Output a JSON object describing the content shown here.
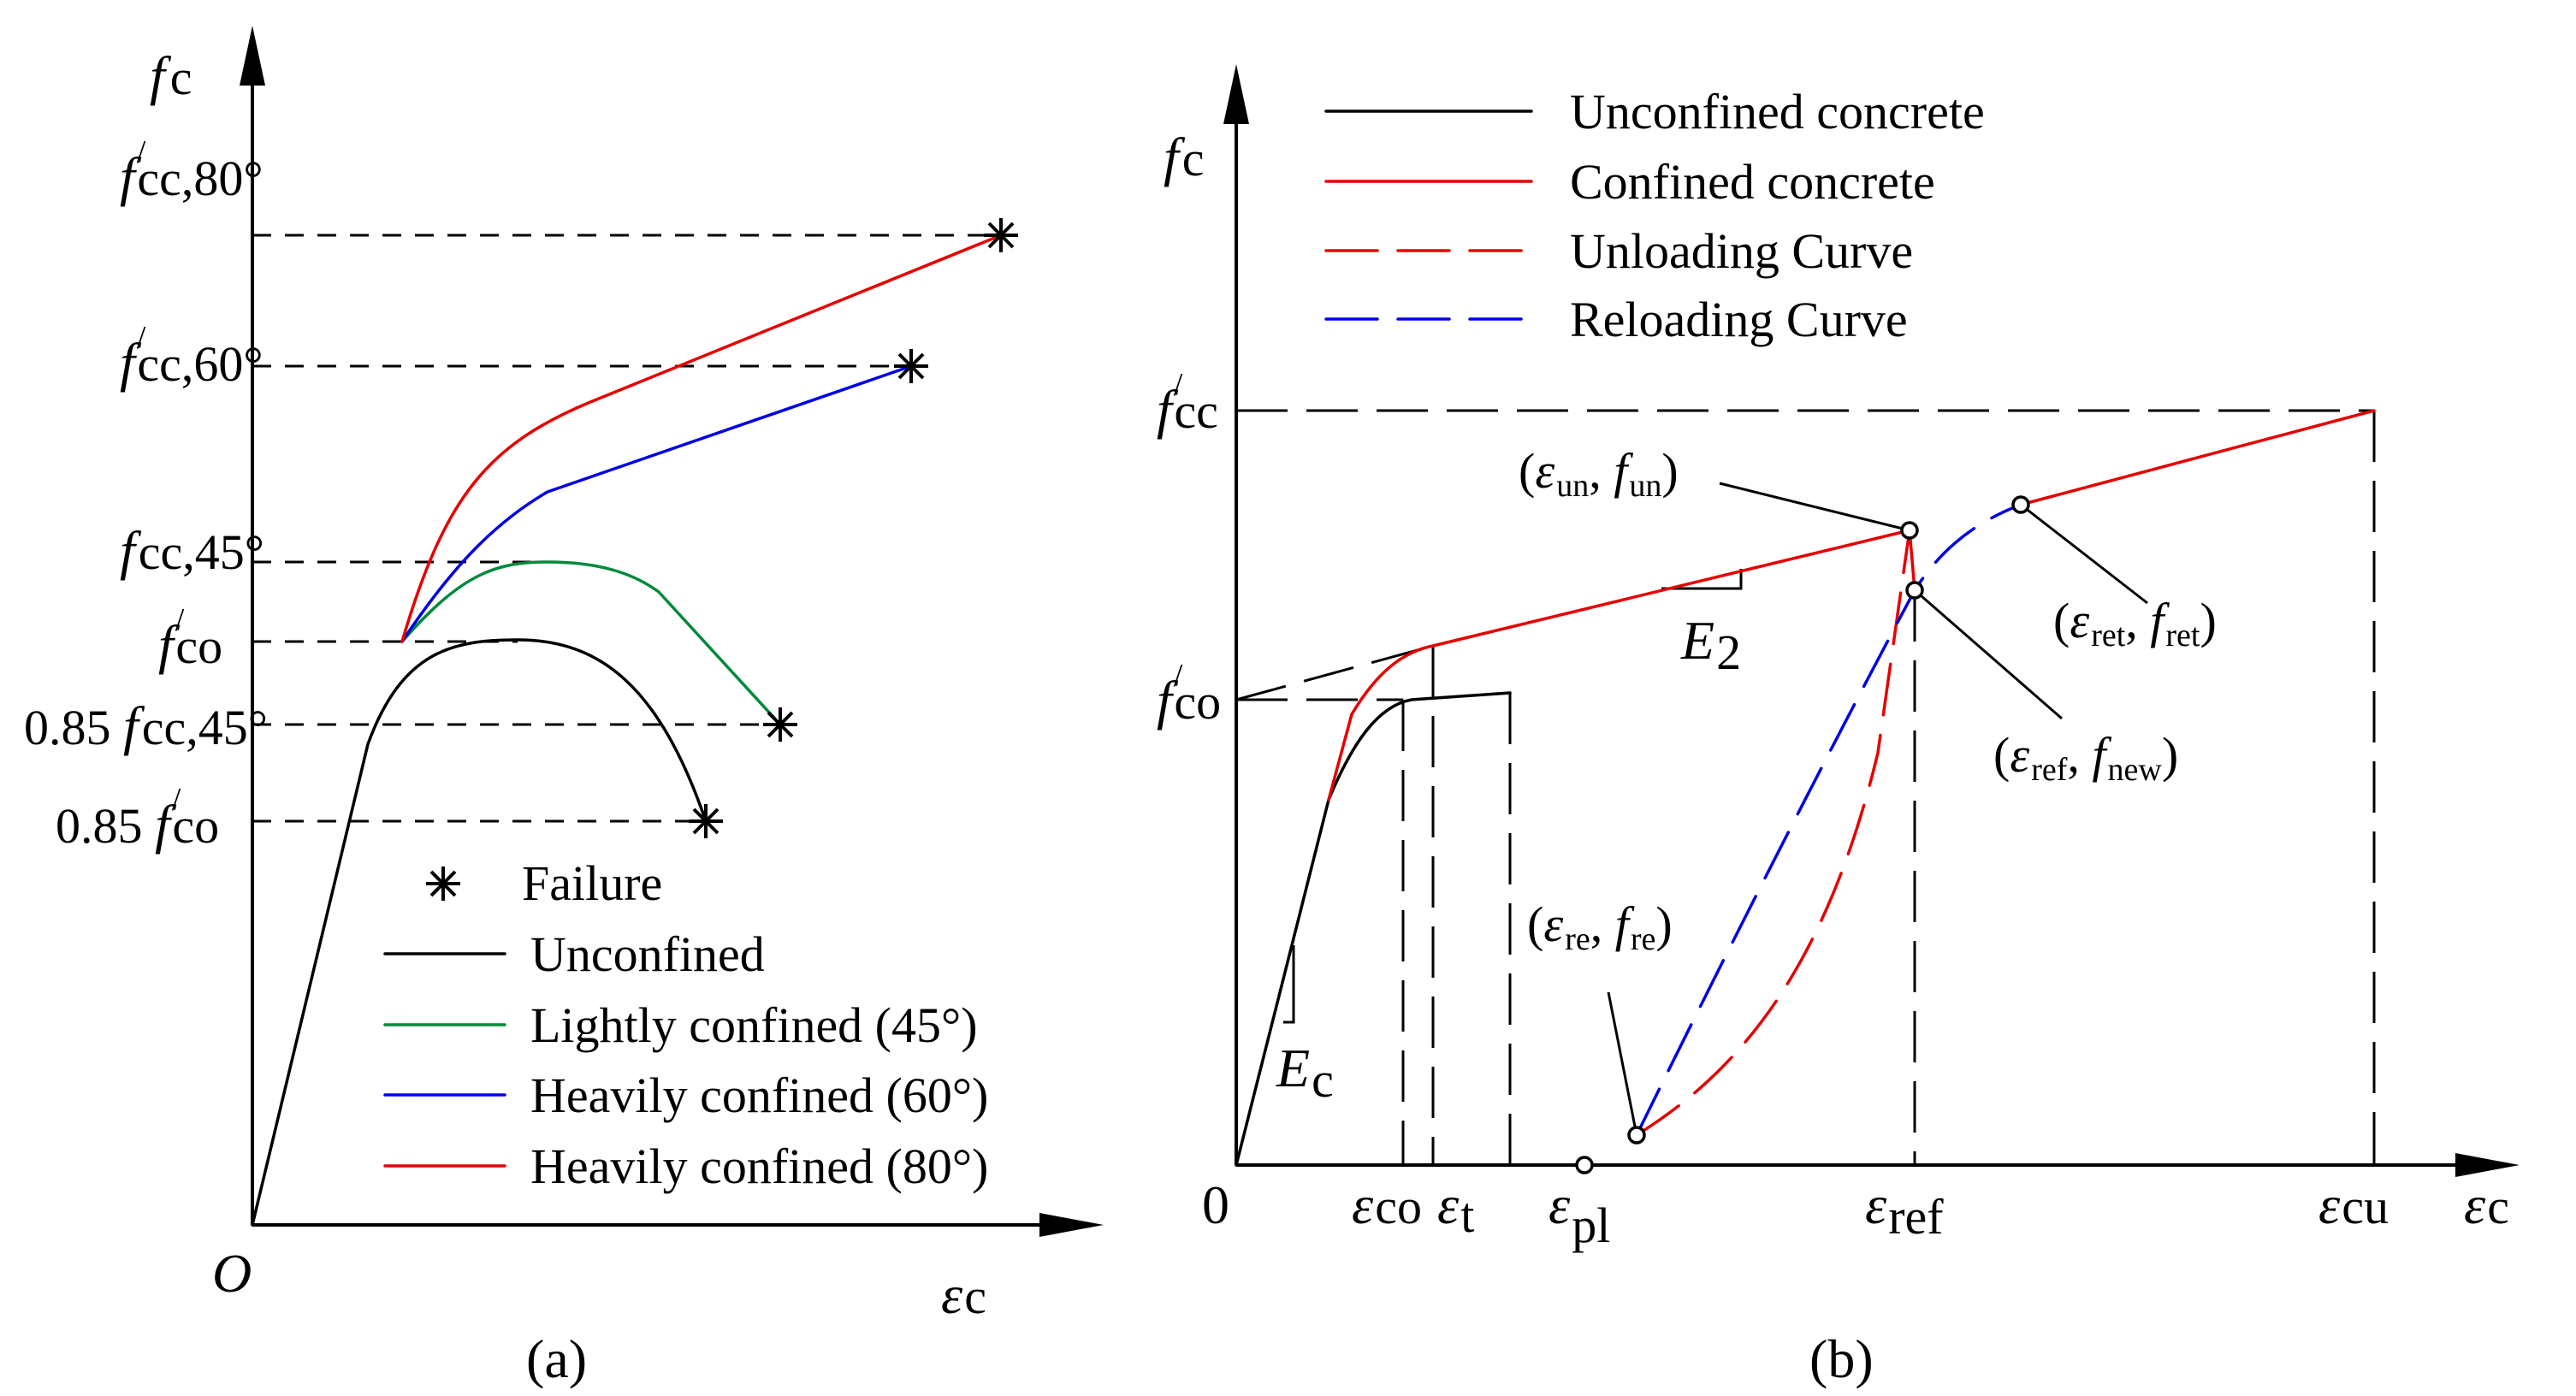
{
  "colors": {
    "unconfined": "#000000",
    "light_45": "#008a3a",
    "heavy_60": "#0000e6",
    "heavy_80": "#e60000",
    "confined": "#e60000",
    "unloading": "#e60000",
    "reloading": "#0000e6"
  },
  "panel_a": {
    "caption": "(a)",
    "origin": "O",
    "y_axis": {
      "main": "f",
      "sub": "c"
    },
    "x_axis": {
      "main": "ε",
      "sub": "c"
    },
    "ticks": [
      {
        "prefix": "",
        "main": "f",
        "prime": "/",
        "sub": "cc,80°"
      },
      {
        "prefix": "",
        "main": "f",
        "prime": "/",
        "sub": "cc,60°"
      },
      {
        "prefix": "",
        "main": "f",
        "prime": "",
        "sub": "cc,45°"
      },
      {
        "prefix": "",
        "main": "f",
        "prime": "/",
        "sub": "co"
      },
      {
        "prefix": "0.85 ",
        "main": "f",
        "prime": "",
        "sub": "cc,45°"
      },
      {
        "prefix": "0.85 ",
        "main": "f",
        "prime": "/",
        "sub": "co"
      }
    ],
    "legend": {
      "failure_icon": "asterisk-icon",
      "failure": "Failure",
      "unconfined": "Unconfined",
      "light": "Lightly confined (45°)",
      "heavy60": "Heavily confined (60°)",
      "heavy80": "Heavily confined (80°)"
    }
  },
  "panel_b": {
    "caption": "(b)",
    "origin": "0",
    "y_axis": {
      "main": "f",
      "sub": "c"
    },
    "x_axis": {
      "main": "ε",
      "sub": "c"
    },
    "y_ticks": [
      {
        "main": "f",
        "prime": "/",
        "sub": "cc"
      },
      {
        "main": "f",
        "prime": "/",
        "sub": "co"
      }
    ],
    "x_ticks": [
      {
        "main": "ε",
        "sub": "co"
      },
      {
        "main": "ε",
        "sub": "t"
      },
      {
        "main": "ε",
        "sub": "pl"
      },
      {
        "main": "ε",
        "sub": "ref"
      },
      {
        "main": "ε",
        "sub": "cu"
      }
    ],
    "legend": {
      "unconfined": "Unconfined concrete",
      "confined": "Confined concrete",
      "unloading": "Unloading Curve",
      "reloading": "Reloading Curve"
    },
    "points": {
      "un": {
        "e": "ε",
        "es": "un",
        "f": "f",
        "fs": "un"
      },
      "ret": {
        "e": "ε",
        "es": "ret",
        "f": "f",
        "fs": "ret"
      },
      "ref_new": {
        "e": "ε",
        "es": "ref",
        "f": "f",
        "fs": "new"
      },
      "re": {
        "e": "ε",
        "es": "re",
        "f": "f",
        "fs": "re"
      }
    },
    "slopes": {
      "E2": {
        "main": "E",
        "sub": "2"
      },
      "Ec": {
        "main": "E",
        "sub": "c"
      }
    }
  }
}
